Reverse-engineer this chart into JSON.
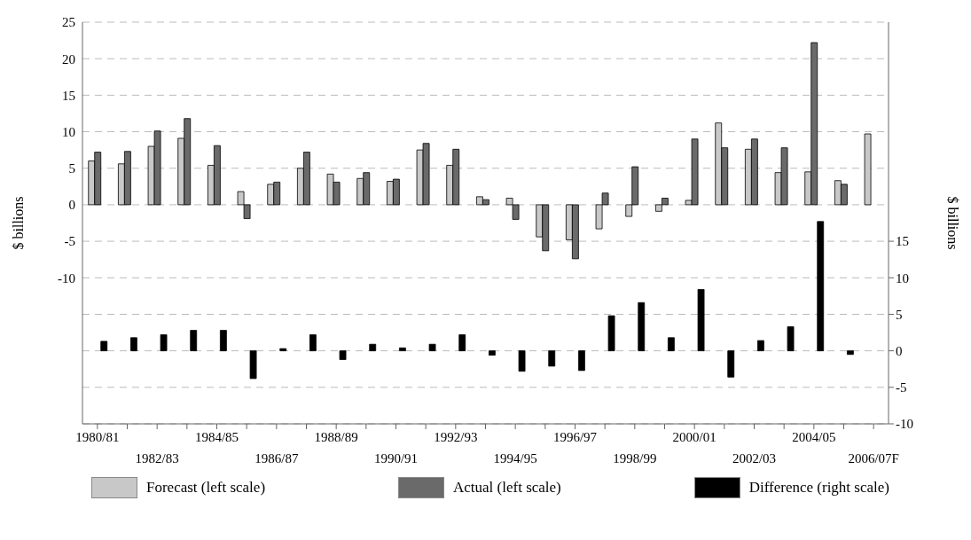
{
  "chart_data": {
    "type": "bar",
    "ylabel": "$ billions",
    "y2label": "$ billions",
    "categories": [
      "1980/81",
      null,
      "1982/83",
      null,
      "1984/85",
      null,
      "1986/87",
      null,
      "1988/89",
      null,
      "1990/91",
      null,
      "1992/93",
      null,
      "1994/95",
      null,
      "1996/97",
      null,
      "1998/99",
      null,
      "2000/01",
      null,
      "2002/03",
      null,
      "2004/05",
      null,
      "2006/07F"
    ],
    "series": [
      {
        "name": "Forecast (left scale)",
        "color": "#c8c8c8",
        "values": [
          6.0,
          5.6,
          8.0,
          9.1,
          5.4,
          1.8,
          2.8,
          5.0,
          4.2,
          3.6,
          3.2,
          7.5,
          5.4,
          1.1,
          0.9,
          -4.4,
          -4.8,
          -3.3,
          -1.6,
          -0.9,
          0.6,
          11.2,
          7.6,
          4.4,
          4.5,
          3.3,
          9.7
        ]
      },
      {
        "name": "Actual (left scale)",
        "color": "#6a6a6a",
        "values": [
          7.2,
          7.3,
          10.1,
          11.8,
          8.1,
          -1.9,
          3.1,
          7.2,
          3.1,
          4.4,
          3.5,
          8.4,
          7.6,
          0.7,
          -2.0,
          -6.3,
          -7.4,
          1.6,
          5.2,
          0.9,
          9.0,
          7.8,
          9.0,
          7.8,
          22.2,
          2.8,
          null
        ]
      },
      {
        "name": "Difference (right scale)",
        "color": "#000000",
        "axis": "y2",
        "values": [
          1.3,
          1.8,
          2.2,
          2.8,
          2.8,
          -3.8,
          0.3,
          2.2,
          -1.2,
          0.9,
          0.4,
          0.9,
          2.2,
          -0.6,
          -2.8,
          -2.1,
          -2.7,
          4.8,
          6.6,
          1.8,
          8.4,
          -3.6,
          1.4,
          3.3,
          17.7,
          -0.5,
          null
        ]
      }
    ],
    "ylim": [
      -30,
      25
    ],
    "yticks": [
      25,
      20,
      15,
      10,
      5,
      0,
      -5,
      -10,
      {
        "value": -15,
        "label": null
      },
      {
        "value": -20,
        "label": null
      },
      {
        "value": -25,
        "label": null
      }
    ],
    "y2lim": [
      -10,
      45
    ],
    "y2ticks": [
      -10,
      -5,
      0,
      5,
      10,
      15
    ],
    "grid": "y",
    "legend": "bottom"
  }
}
